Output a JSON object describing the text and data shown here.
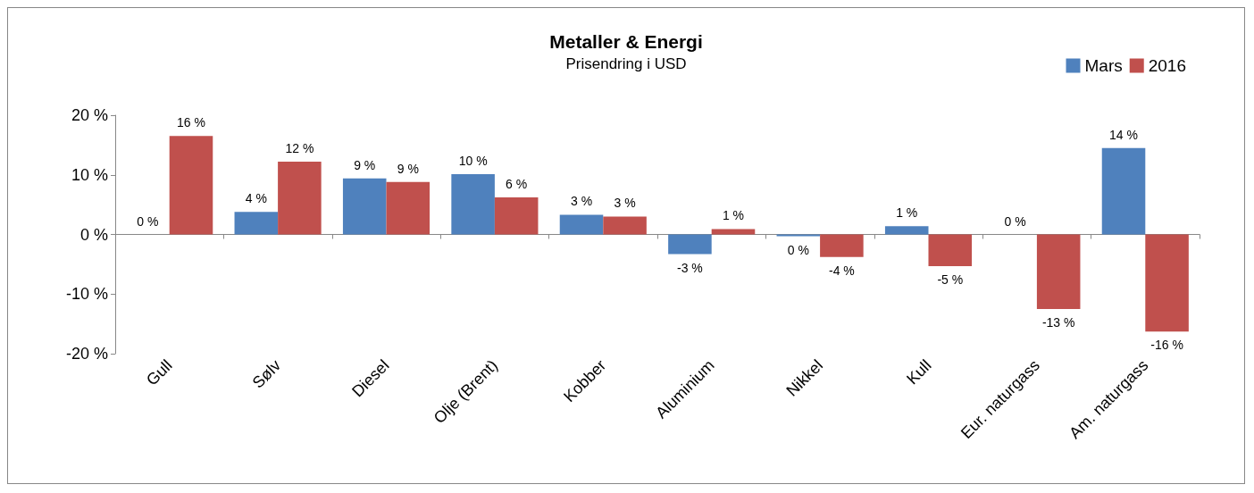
{
  "chart_data": {
    "type": "bar",
    "title": "Metaller & Energi",
    "subtitle": "Prisendring i USD",
    "categories": [
      "Gull",
      "Sølv",
      "Diesel",
      "Olje (Brent)",
      "Kobber",
      "Aluminium",
      "Nikkel",
      "Kull",
      "Eur. naturgass",
      "Am. naturgass"
    ],
    "series": [
      {
        "name": "Mars",
        "color": "#4f81bd",
        "values": [
          0,
          3.8,
          9.4,
          10.1,
          3.3,
          -3.3,
          -0.3,
          1.4,
          0,
          14.5
        ],
        "value_labels": [
          "0 %",
          "4 %",
          "9 %",
          "10 %",
          "3 %",
          "-3 %",
          "0 %",
          "1 %",
          "0 %",
          "14 %"
        ]
      },
      {
        "name": "2016",
        "color": "#c0504d",
        "values": [
          16.5,
          12.2,
          8.8,
          6.2,
          3.0,
          0.9,
          -3.8,
          -5.3,
          -12.5,
          -16.3
        ],
        "value_labels": [
          "16 %",
          "12 %",
          "9 %",
          "6 %",
          "3 %",
          "1 %",
          "-4 %",
          "-5 %",
          "-13 %",
          "-16 %"
        ]
      }
    ],
    "ylim": [
      -20,
      20
    ],
    "yticks": [
      {
        "value": -20,
        "label": "-20 %"
      },
      {
        "value": -10,
        "label": "-10 %"
      },
      {
        "value": 0,
        "label": "0 %"
      },
      {
        "value": 10,
        "label": "10 %"
      },
      {
        "value": 20,
        "label": "20 %"
      }
    ],
    "legend": "top right"
  }
}
